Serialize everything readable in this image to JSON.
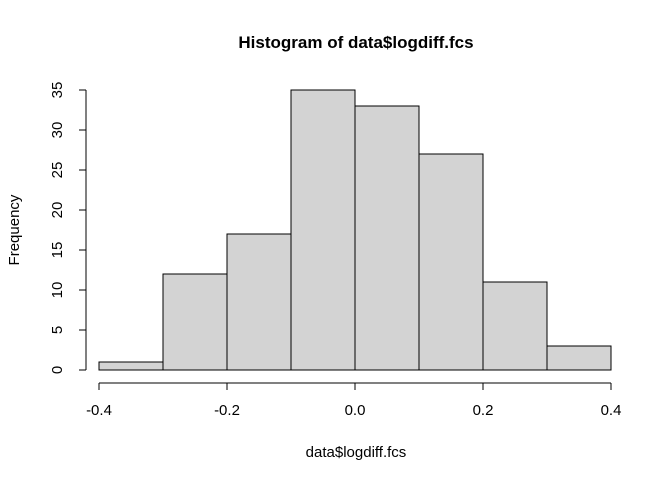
{
  "chart_data": {
    "type": "bar",
    "title": "Histogram of data$logdiff.fcs",
    "xlabel": "data$logdiff.fcs",
    "ylabel": "Frequency",
    "bins": [
      {
        "from": -0.4,
        "to": -0.3,
        "count": 1
      },
      {
        "from": -0.3,
        "to": -0.2,
        "count": 12
      },
      {
        "from": -0.2,
        "to": -0.1,
        "count": 17
      },
      {
        "from": -0.1,
        "to": 0.0,
        "count": 35
      },
      {
        "from": 0.0,
        "to": 0.1,
        "count": 33
      },
      {
        "from": 0.1,
        "to": 0.2,
        "count": 27
      },
      {
        "from": 0.2,
        "to": 0.3,
        "count": 11
      },
      {
        "from": 0.3,
        "to": 0.4,
        "count": 3
      }
    ],
    "xlim": [
      -0.4,
      0.4
    ],
    "ylim": [
      0,
      35
    ],
    "x_ticks": [
      "-0.4",
      "-0.2",
      "0.0",
      "0.2",
      "0.4"
    ],
    "y_ticks": [
      "0",
      "5",
      "10",
      "15",
      "20",
      "25",
      "30",
      "35"
    ],
    "grid": false,
    "bar_fill": "#d3d3d3",
    "bar_stroke": "#000000"
  }
}
